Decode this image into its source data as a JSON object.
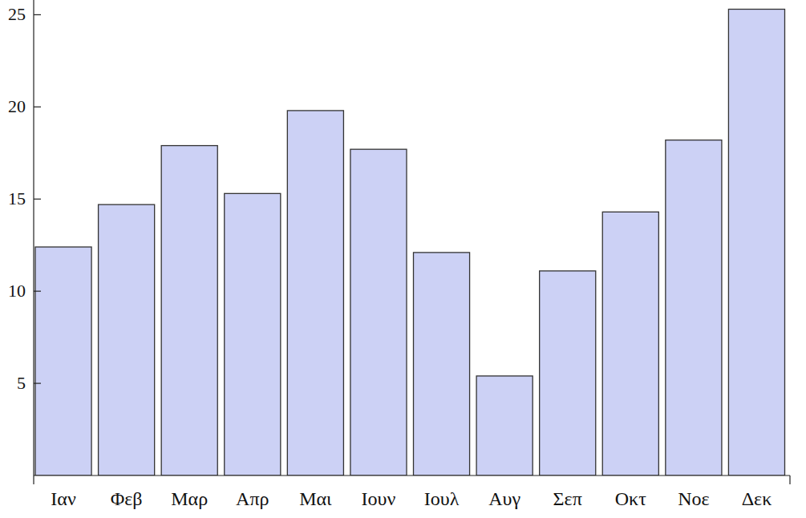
{
  "chart_data": {
    "type": "bar",
    "categories": [
      "Ιαν",
      "Φεβ",
      "Μαρ",
      "Απρ",
      "Μαι",
      "Ιουν",
      "Ιουλ",
      "Αυγ",
      "Σεπ",
      "Οκτ",
      "Νοε",
      "Δεκ"
    ],
    "values": [
      12.4,
      14.7,
      17.9,
      15.3,
      19.8,
      17.7,
      12.1,
      5.4,
      11.1,
      14.3,
      18.2,
      25.3
    ],
    "color": "#ccd1f5",
    "ylim": [
      0,
      25.8
    ],
    "yticks": [
      5,
      10,
      15,
      20,
      25
    ],
    "grid": false
  }
}
